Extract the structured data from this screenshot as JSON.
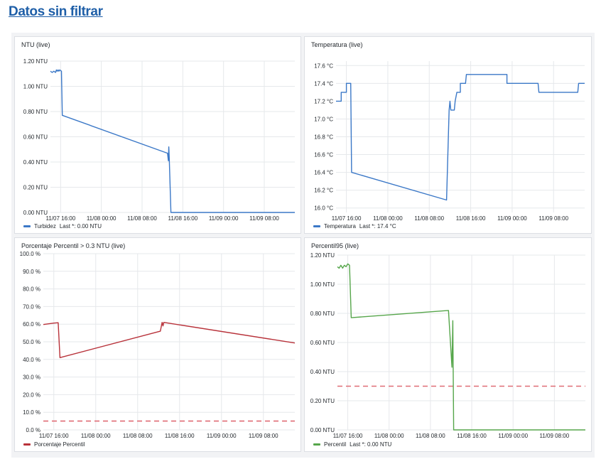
{
  "page": {
    "title": "Datos sin filtrar"
  },
  "time_axis": {
    "start": "11/07 14:00",
    "end": "11/09 14:00",
    "ticks": [
      "11/07 16:00",
      "11/08 00:00",
      "11/08 08:00",
      "11/08 16:00",
      "11/09 00:00",
      "11/09 08:00"
    ]
  },
  "panels": [
    {
      "title": "NTU (live)",
      "legend": {
        "label": "Turbidez",
        "stat": "Last *: 0.00 NTU"
      },
      "color": "#3b78c7"
    },
    {
      "title": "Temperatura (live)",
      "legend": {
        "label": "Temperatura",
        "stat": "Last *: 17.4 °C"
      },
      "color": "#3b78c7"
    },
    {
      "title": "Porcentaje Percentil > 0.3 NTU (live)",
      "legend": {
        "label": "Porcentaje Percentil",
        "stat": ""
      },
      "color": "#b8323a"
    },
    {
      "title": "Percentil95 (live)",
      "legend": {
        "label": "Percentil",
        "stat": "Last *: 0.00 NTU"
      },
      "color": "#56a64b"
    }
  ],
  "chart_data": [
    {
      "type": "line",
      "title": "NTU (live)",
      "ylim": [
        0,
        1.2
      ],
      "yticks": [
        0,
        0.2,
        0.4,
        0.6,
        0.8,
        1.0,
        1.2
      ],
      "ytick_labels": [
        "0.00 NTU",
        "0.20 NTU",
        "0.40 NTU",
        "0.60 NTU",
        "0.80 NTU",
        "1.00 NTU",
        "1.20 NTU"
      ],
      "series": [
        {
          "name": "Turbidez",
          "color": "#3b78c7",
          "points": [
            [
              "11/07 14:00",
              1.12
            ],
            [
              "11/07 14:20",
              1.11
            ],
            [
              "11/07 14:40",
              1.12
            ],
            [
              "11/07 15:00",
              1.11
            ],
            [
              "11/07 15:10",
              1.13
            ],
            [
              "11/07 15:20",
              1.12
            ],
            [
              "11/07 15:30",
              1.13
            ],
            [
              "11/07 15:40",
              1.12
            ],
            [
              "11/07 15:50",
              1.13
            ],
            [
              "11/07 16:10",
              1.12
            ],
            [
              "11/07 16:20",
              0.77
            ],
            [
              "11/08 13:00",
              0.47
            ],
            [
              "11/08 13:10",
              0.41
            ],
            [
              "11/08 13:15",
              0.52
            ],
            [
              "11/08 13:20",
              0.44
            ],
            [
              "11/08 13:40",
              0.0
            ],
            [
              "11/09 14:00",
              0.0
            ]
          ]
        }
      ]
    },
    {
      "type": "line",
      "title": "Temperatura (live)",
      "ylim": [
        15.95,
        17.65
      ],
      "yticks": [
        16.0,
        16.2,
        16.4,
        16.6,
        16.8,
        17.0,
        17.2,
        17.4,
        17.6
      ],
      "ytick_labels": [
        "16.0 °C",
        "16.2 °C",
        "16.4 °C",
        "16.6 °C",
        "16.8 °C",
        "17.0 °C",
        "17.2 °C",
        "17.4 °C",
        "17.6 °C"
      ],
      "series": [
        {
          "name": "Temperatura",
          "color": "#3b78c7",
          "points": [
            [
              "11/07 14:00",
              17.2
            ],
            [
              "11/07 15:00",
              17.2
            ],
            [
              "11/07 15:00",
              17.3
            ],
            [
              "11/07 16:00",
              17.3
            ],
            [
              "11/07 16:00",
              17.4
            ],
            [
              "11/07 16:50",
              17.4
            ],
            [
              "11/07 17:00",
              16.4
            ],
            [
              "11/08 11:20",
              16.09
            ],
            [
              "11/08 11:50",
              17.1
            ],
            [
              "11/08 12:00",
              17.2
            ],
            [
              "11/08 12:10",
              17.1
            ],
            [
              "11/08 12:50",
              17.1
            ],
            [
              "11/08 13:00",
              17.2
            ],
            [
              "11/08 13:20",
              17.3
            ],
            [
              "11/08 14:00",
              17.3
            ],
            [
              "11/08 14:00",
              17.4
            ],
            [
              "11/08 15:00",
              17.4
            ],
            [
              "11/08 15:10",
              17.5
            ],
            [
              "11/08 23:00",
              17.5
            ],
            [
              "11/08 23:00",
              17.4
            ],
            [
              "11/09 05:00",
              17.4
            ],
            [
              "11/09 05:10",
              17.3
            ],
            [
              "11/09 12:40",
              17.3
            ],
            [
              "11/09 12:50",
              17.4
            ],
            [
              "11/09 14:00",
              17.4
            ]
          ]
        }
      ]
    },
    {
      "type": "line",
      "title": "Porcentaje Percentil > 0.3 NTU (live)",
      "ylim": [
        0,
        100
      ],
      "yticks": [
        0,
        10,
        20,
        30,
        40,
        50,
        60,
        70,
        80,
        90,
        100
      ],
      "ytick_labels": [
        "0.0 %",
        "10.0 %",
        "20.0 %",
        "30.0 %",
        "40.0 %",
        "50.0 %",
        "60.0 %",
        "70.0 %",
        "80.0 %",
        "90.0 %",
        "100.0 %"
      ],
      "series": [
        {
          "name": "Porcentaje Percentil",
          "color": "#b8323a",
          "points": [
            [
              "11/07 14:00",
              59.8
            ],
            [
              "11/07 15:00",
              60.2
            ],
            [
              "11/07 16:00",
              60.6
            ],
            [
              "11/07 16:50",
              60.8
            ],
            [
              "11/07 17:10",
              41.0
            ],
            [
              "11/08 12:20",
              56.0
            ],
            [
              "11/08 12:40",
              61.0
            ],
            [
              "11/08 12:50",
              59.0
            ],
            [
              "11/08 13:00",
              61.0
            ],
            [
              "11/09 14:00",
              49.3
            ]
          ]
        }
      ],
      "threshold": {
        "value": 5,
        "color": "#e06c75",
        "style": "dashed"
      }
    },
    {
      "type": "line",
      "title": "Percentil95 (live)",
      "ylim": [
        0,
        1.2
      ],
      "yticks": [
        0,
        0.2,
        0.4,
        0.6,
        0.8,
        1.0,
        1.2
      ],
      "ytick_labels": [
        "0.00 NTU",
        "0.20 NTU",
        "0.40 NTU",
        "0.60 NTU",
        "0.80 NTU",
        "1.00 NTU",
        "1.20 NTU"
      ],
      "series": [
        {
          "name": "Percentil",
          "color": "#56a64b",
          "points": [
            [
              "11/07 14:00",
              1.12
            ],
            [
              "11/07 14:20",
              1.11
            ],
            [
              "11/07 14:40",
              1.13
            ],
            [
              "11/07 15:00",
              1.11
            ],
            [
              "11/07 15:20",
              1.13
            ],
            [
              "11/07 15:40",
              1.12
            ],
            [
              "11/07 16:00",
              1.14
            ],
            [
              "11/07 16:20",
              1.13
            ],
            [
              "11/07 16:40",
              0.77
            ],
            [
              "11/08 11:30",
              0.82
            ],
            [
              "11/08 12:10",
              0.43
            ],
            [
              "11/08 12:20",
              0.75
            ],
            [
              "11/08 12:30",
              0.0
            ],
            [
              "11/09 14:00",
              0.0
            ]
          ]
        }
      ],
      "threshold": {
        "value": 0.3,
        "color": "#e06c75",
        "style": "dashed"
      }
    }
  ]
}
